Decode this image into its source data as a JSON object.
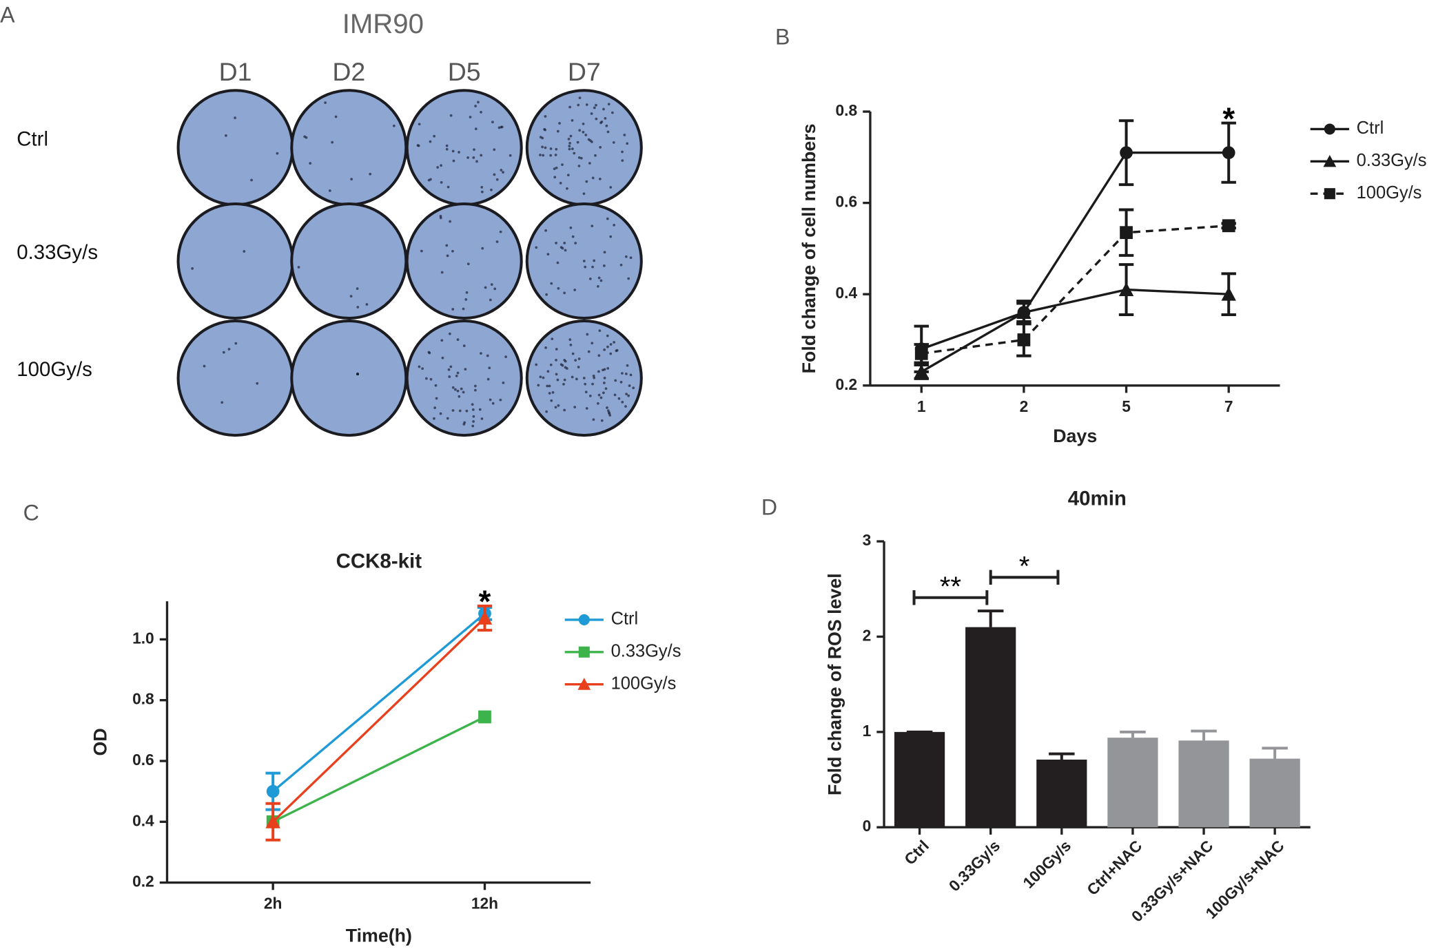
{
  "panel_a": {
    "label": "A",
    "title": "IMR90",
    "columns": [
      "D1",
      "D2",
      "D5",
      "D7"
    ],
    "rows": [
      "Ctrl",
      "0.33Gy/s",
      "100Gy/s"
    ]
  },
  "chart_data": [
    {
      "type": "line",
      "panel_label": "B",
      "xlabel": "Days",
      "ylabel": "Fold change of cell numbers",
      "categories": [
        "1",
        "2",
        "5",
        "7"
      ],
      "ylim": [
        0.2,
        0.8
      ],
      "yticks": [
        0.2,
        0.4,
        0.6,
        0.8
      ],
      "annotations": [
        "*"
      ],
      "series": [
        {
          "name": "Ctrl",
          "color": "#1a1a1a",
          "marker": "circle",
          "linestyle": "solid",
          "values": [
            0.28,
            0.36,
            0.71,
            0.71
          ],
          "errors": [
            0.05,
            0.025,
            0.07,
            0.065
          ]
        },
        {
          "name": "0.33Gy/s",
          "color": "#1a1a1a",
          "marker": "triangle",
          "linestyle": "solid",
          "values": [
            0.23,
            0.36,
            0.41,
            0.4
          ],
          "errors": [
            0.015,
            0.02,
            0.055,
            0.045
          ]
        },
        {
          "name": "100Gy/s",
          "color": "#1a1a1a",
          "marker": "square",
          "linestyle": "dashed",
          "values": [
            0.27,
            0.3,
            0.535,
            0.55
          ],
          "errors": [
            0.02,
            0.035,
            0.05,
            0.005
          ]
        }
      ]
    },
    {
      "type": "line",
      "panel_label": "C",
      "title": "CCK8-kit",
      "xlabel": "Time(h)",
      "ylabel": "OD",
      "categories": [
        "2h",
        "12h"
      ],
      "ylim": [
        0.2,
        1.11
      ],
      "yticks": [
        0.2,
        0.4,
        0.6,
        0.8,
        {
          "value": 1,
          "label": "1.0"
        }
      ],
      "annotations": [
        "*"
      ],
      "series": [
        {
          "name": "Ctrl",
          "color": "#1e9ad6",
          "marker": "circle",
          "linestyle": "solid",
          "values": [
            0.5,
            1.085
          ],
          "errors": [
            0.06,
            0.02
          ]
        },
        {
          "name": "0.33Gy/s",
          "color": "#3cb44b",
          "marker": "square",
          "linestyle": "solid",
          "values": [
            0.4,
            0.745
          ]
        },
        {
          "name": "100Gy/s",
          "color": "#e8401c",
          "marker": "triangle",
          "linestyle": "solid",
          "values": [
            0.4,
            1.07
          ],
          "errors": [
            0.06,
            0.04
          ]
        }
      ]
    },
    {
      "type": "bar",
      "panel_label": "D",
      "title": "40min",
      "ylabel": "Fold change of ROS level",
      "categories": [
        "Ctrl",
        "0.33Gy/s",
        "100Gy/s",
        "Ctrl+NAC",
        "0.33Gy/s+NAC",
        "100Gy/s+NAC"
      ],
      "values": [
        1.0,
        2.1,
        0.71,
        0.94,
        0.91,
        0.72
      ],
      "errors": [
        0,
        0.17,
        0.06,
        0.06,
        0.1,
        0.11
      ],
      "colors": [
        "#231f20",
        "#231f20",
        "#231f20",
        "#939598",
        "#939598",
        "#939598"
      ],
      "ylim": [
        0,
        3
      ],
      "yticks": [
        0,
        1,
        2,
        3
      ],
      "annotations": [
        "**",
        "*"
      ]
    }
  ]
}
